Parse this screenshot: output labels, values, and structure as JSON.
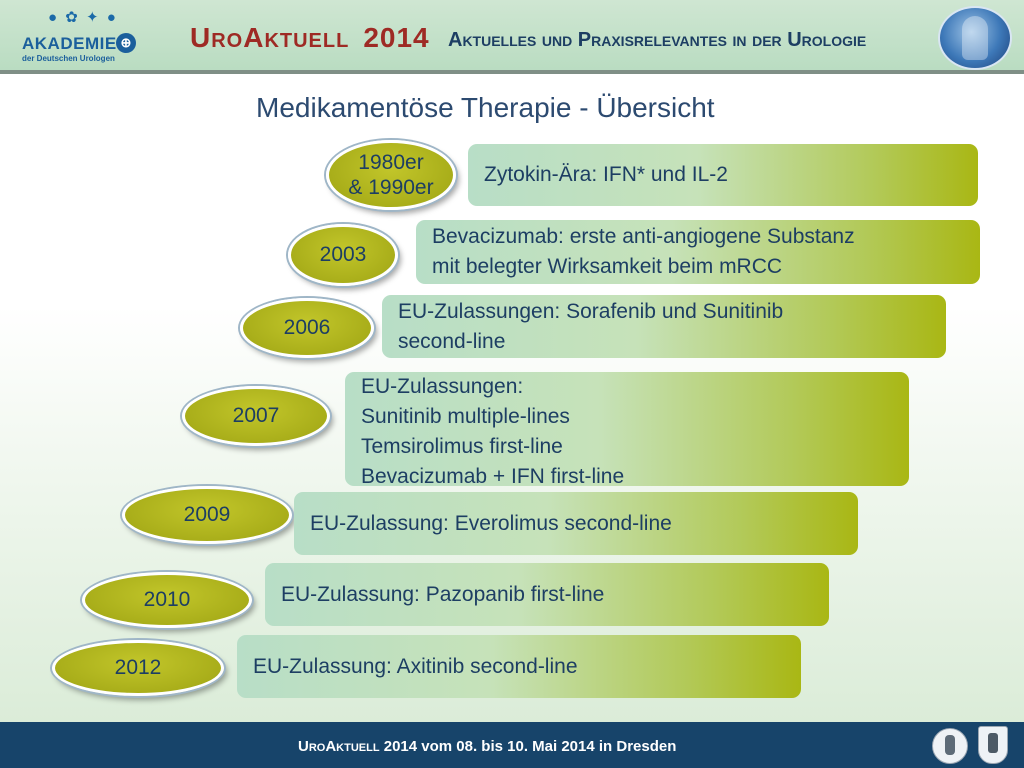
{
  "header": {
    "logo_dots": "● ✿ ✦ ●",
    "logo_name": "AKADEMIE",
    "logo_sub": "der Deutschen Urologen",
    "title_brand": "UroAktuell",
    "title_year": "2014",
    "subtitle": "Aktuelles und Praxisrelevantes in der Urologie"
  },
  "slide_title": "Medikamentöse Therapie - Übersicht",
  "timeline": [
    {
      "year": "1980er\n& 1990er",
      "lines": [
        "Zytokin-Ära: IFN* und IL-2"
      ]
    },
    {
      "year": "2003",
      "lines": [
        "Bevacizumab: erste anti-angiogene Substanz",
        "mit belegter Wirksamkeit beim mRCC"
      ]
    },
    {
      "year": "2006",
      "lines": [
        "EU-Zulassungen: Sorafenib und Sunitinib",
        "second-line"
      ]
    },
    {
      "year": "2007",
      "lines": [
        "EU-Zulassungen:",
        "Sunitinib multiple-lines",
        "Temsirolimus first-line",
        "Bevacizumab + IFN first-line"
      ]
    },
    {
      "year": "2009",
      "lines": [
        "EU-Zulassung: Everolimus second-line"
      ]
    },
    {
      "year": "2010",
      "lines": [
        "EU-Zulassung: Pazopanib first-line"
      ]
    },
    {
      "year": "2012",
      "lines": [
        "EU-Zulassung: Axitinib second-line"
      ]
    }
  ],
  "footer": {
    "brand": "UroAktuell",
    "text": "2014  vom 08. bis 10. Mai 2014  in Dresden"
  },
  "colors": {
    "header_bg": "#b9dcc1",
    "title_red": "#9e2a24",
    "navy": "#1d3e63",
    "oval_olive": "#a9ae1a",
    "footer_bg": "#17446a"
  }
}
